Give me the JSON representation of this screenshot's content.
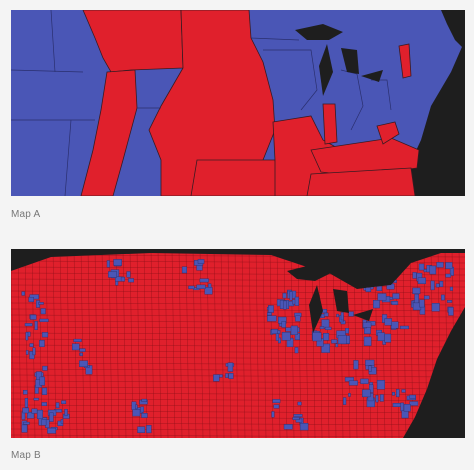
{
  "maps": [
    {
      "id": "map-a",
      "caption": "Map A",
      "granularity": "state"
    },
    {
      "id": "map-b",
      "caption": "Map B",
      "granularity": "county"
    }
  ],
  "colors": {
    "red": "#e0202c",
    "blue": "#4a56b6",
    "border": "#3a1a22",
    "background": "#1e1e1e",
    "page": "#f4f4f4",
    "caption_text": "#777777"
  }
}
